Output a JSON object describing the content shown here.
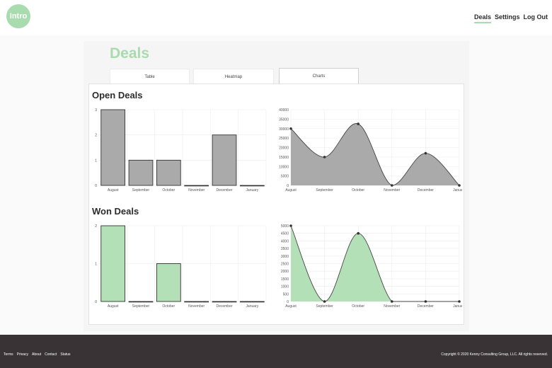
{
  "header": {
    "logo_text": "Intro",
    "nav": [
      "Deals",
      "Settings",
      "Log Out"
    ],
    "active_nav": "Deals",
    "accent_color": "#a8dcae"
  },
  "page": {
    "title": "Deals",
    "tabs": [
      "Table",
      "Heatmap",
      "Charts"
    ],
    "active_tab": "Charts"
  },
  "sections": {
    "open_title": "Open Deals",
    "won_title": "Won Deals"
  },
  "chart_data": [
    {
      "type": "bar",
      "categories": [
        "August",
        "September",
        "October",
        "November",
        "December",
        "January"
      ],
      "values": [
        3,
        1,
        1,
        0,
        2,
        0
      ],
      "ylim": [
        0,
        3
      ],
      "yticks": [
        0,
        1,
        2,
        3
      ],
      "color": "#aaaaaa",
      "title": "",
      "xlabel": "",
      "ylabel": ""
    },
    {
      "type": "area",
      "categories": [
        "August",
        "September",
        "October",
        "November",
        "December",
        "January"
      ],
      "values": [
        30000,
        15000,
        32500,
        0,
        17000,
        0
      ],
      "ylim": [
        0,
        40000
      ],
      "yticks": [
        0,
        5000,
        10000,
        15000,
        20000,
        25000,
        30000,
        35000,
        40000
      ],
      "color": "#aaaaaa",
      "title": "",
      "xlabel": "",
      "ylabel": ""
    },
    {
      "type": "bar",
      "categories": [
        "August",
        "September",
        "October",
        "November",
        "December",
        "January"
      ],
      "values": [
        2,
        0,
        1,
        0,
        0,
        0
      ],
      "ylim": [
        0,
        2
      ],
      "yticks": [
        0,
        1,
        2
      ],
      "color": "#b4e0b8",
      "title": "",
      "xlabel": "",
      "ylabel": ""
    },
    {
      "type": "area",
      "categories": [
        "August",
        "September",
        "October",
        "November",
        "December",
        "January"
      ],
      "values": [
        5000,
        0,
        4500,
        0,
        0,
        0
      ],
      "ylim": [
        0,
        5000
      ],
      "yticks": [
        0,
        500,
        1000,
        1500,
        2000,
        2500,
        3000,
        3500,
        4000,
        4500,
        5000
      ],
      "color": "#b4e0b8",
      "title": "",
      "xlabel": "",
      "ylabel": ""
    }
  ],
  "footer": {
    "links": [
      "Terms",
      "Privacy",
      "About",
      "Contact",
      "Status"
    ],
    "copyright": "Copyright © 2020 Kenny Consulting Group, LLC. All rights reserved."
  }
}
